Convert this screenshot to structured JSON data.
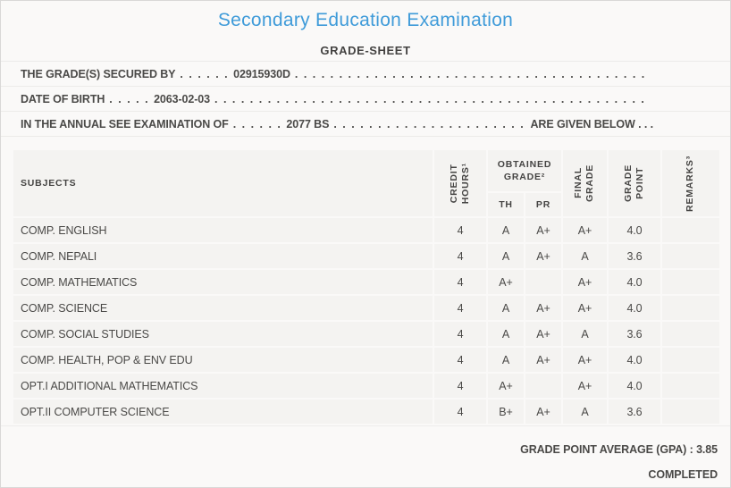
{
  "page": {
    "title": "Secondary Education Examination",
    "subtitle": "GRADE-SHEET",
    "accent_color": "#3f9bd9"
  },
  "info_lines": [
    {
      "label": "THE GRADE(S) SECURED BY",
      "leader": ". . . . . .",
      "value": "02915930D",
      "filler": ". . . . . . . . . . . . . . . . . . . . . . . . . . . . . . . . . . . . . . . . . . . . . . . . . . . . . . . . . . . . . . . . . . . . . . . . . . . . . . . . . . . . . . . . . . . .",
      "suffix": ""
    },
    {
      "label": "DATE OF BIRTH",
      "leader": ". . . . .",
      "value": "2063-02-03",
      "filler": ". . . . . . . . . . . . . . . . . . . . . . . . . . . . . . . . . . . . . . . . . . . . . . . . . . . . . . . . . . . . . . . . . . . . . . . . . . . . . . . . . . . . . . . . . . . .",
      "suffix": ""
    },
    {
      "label": "IN THE ANNUAL SEE EXAMINATION OF",
      "leader": ". . . . . .",
      "value": "2077 BS",
      "filler": ". . . . . . . . . . . . . . . . . . . . . . . . . . . . . . . . . . . . . . . . . . . . . . . . . . . . . . . . . . . . . . . . . . . . . . . . . . . . . . . . . . . . . . . . . . . .",
      "suffix": "ARE GIVEN BELOW . . ."
    }
  ],
  "table": {
    "headers": {
      "subjects": "SUBJECTS",
      "credit_hours_line1": "CREDIT",
      "credit_hours_line2": "HOURS¹",
      "obtained_grade_line1": "OBTAINED",
      "obtained_grade_line2": "GRADE²",
      "th": "TH",
      "pr": "PR",
      "final_grade_line1": "FINAL",
      "final_grade_line2": "GRADE",
      "grade_point_line1": "GRADE",
      "grade_point_line2": "POINT",
      "remarks": "REMARKS³"
    },
    "rows": [
      {
        "subject": "COMP. ENGLISH",
        "credit_hours": "4",
        "th": "A",
        "pr": "A+",
        "final_grade": "A+",
        "grade_point": "4.0",
        "remarks": ""
      },
      {
        "subject": "COMP. NEPALI",
        "credit_hours": "4",
        "th": "A",
        "pr": "A+",
        "final_grade": "A",
        "grade_point": "3.6",
        "remarks": ""
      },
      {
        "subject": "COMP. MATHEMATICS",
        "credit_hours": "4",
        "th": "A+",
        "pr": "",
        "final_grade": "A+",
        "grade_point": "4.0",
        "remarks": ""
      },
      {
        "subject": "COMP. SCIENCE",
        "credit_hours": "4",
        "th": "A",
        "pr": "A+",
        "final_grade": "A+",
        "grade_point": "4.0",
        "remarks": ""
      },
      {
        "subject": "COMP. SOCIAL STUDIES",
        "credit_hours": "4",
        "th": "A",
        "pr": "A+",
        "final_grade": "A",
        "grade_point": "3.6",
        "remarks": ""
      },
      {
        "subject": "COMP. HEALTH, POP & ENV EDU",
        "credit_hours": "4",
        "th": "A",
        "pr": "A+",
        "final_grade": "A+",
        "grade_point": "4.0",
        "remarks": ""
      },
      {
        "subject": "OPT.I ADDITIONAL MATHEMATICS",
        "credit_hours": "4",
        "th": "A+",
        "pr": "",
        "final_grade": "A+",
        "grade_point": "4.0",
        "remarks": ""
      },
      {
        "subject": "OPT.II COMPUTER SCIENCE",
        "credit_hours": "4",
        "th": "B+",
        "pr": "A+",
        "final_grade": "A",
        "grade_point": "3.6",
        "remarks": ""
      }
    ]
  },
  "footer": {
    "gpa_label": "GRADE POINT AVERAGE (GPA)",
    "gpa_separator": " : ",
    "gpa_value": "3.85",
    "status": "COMPLETED"
  }
}
